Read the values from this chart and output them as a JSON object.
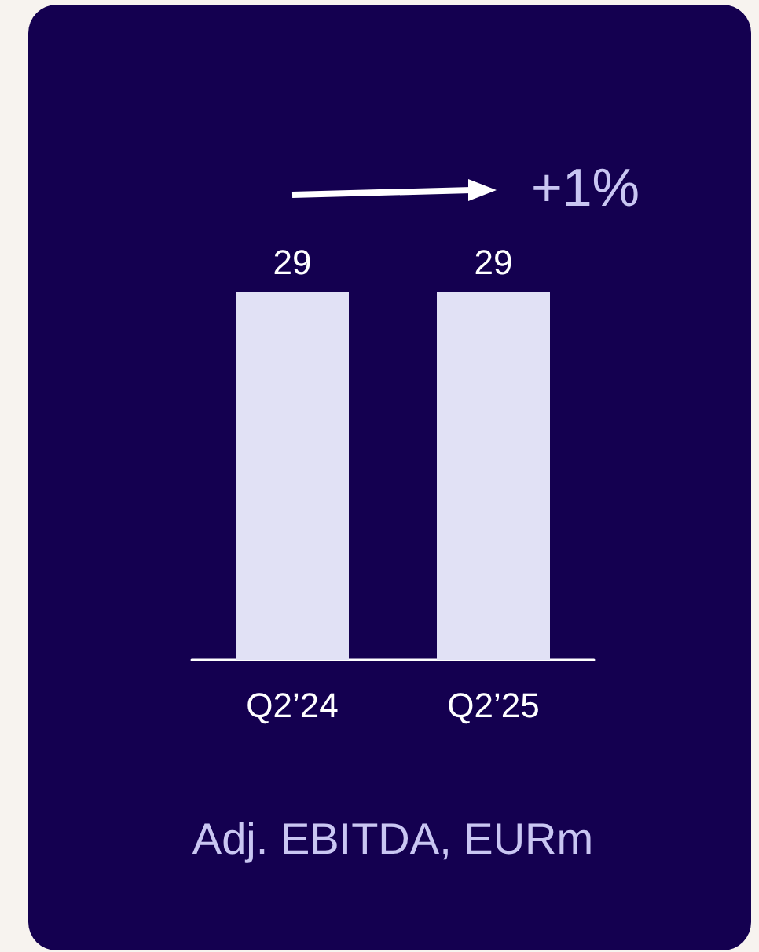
{
  "chart_data": {
    "type": "bar",
    "categories": [
      "Q2’24",
      "Q2’25"
    ],
    "values": [
      29,
      29
    ],
    "color": "#e1e1f5",
    "data_labels": true,
    "xlabel": "Adj. EBITDA, EURm",
    "annotations": [
      "+1%"
    ]
  }
}
